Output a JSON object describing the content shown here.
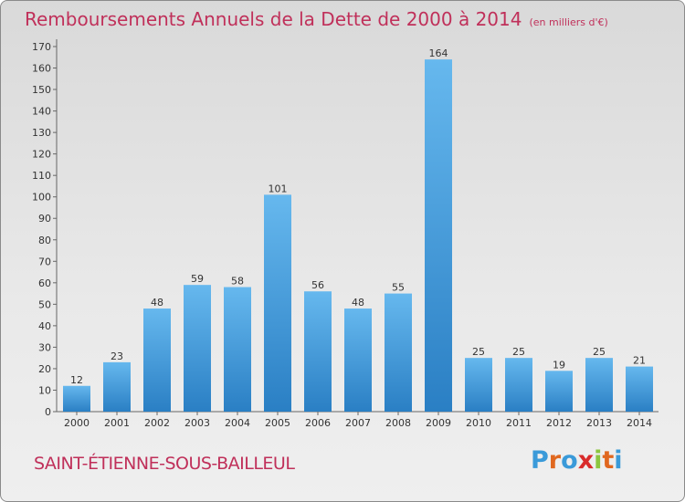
{
  "title": "Remboursements Annuels de la Dette de 2000 à 2014",
  "title_unit": "(en milliers d'€)",
  "commune": "SAINT-ÉTIENNE-SOUS-BAILLEUL",
  "logo": {
    "text": "Proxiti",
    "letters": [
      "P",
      "r",
      "o",
      "x",
      "i",
      "t",
      "i"
    ],
    "colors": [
      "#3a9ad9",
      "#e0681f",
      "#3a9ad9",
      "#d92b2b",
      "#8cc63f",
      "#e0681f",
      "#3a9ad9"
    ]
  },
  "colors": {
    "title": "#c0305a",
    "bar_top": "#66b8ee",
    "bar_bottom": "#2a7fc4"
  },
  "chart_data": {
    "type": "bar",
    "categories": [
      "2000",
      "2001",
      "2002",
      "2003",
      "2004",
      "2005",
      "2006",
      "2007",
      "2008",
      "2009",
      "2010",
      "2011",
      "2012",
      "2013",
      "2014"
    ],
    "values": [
      12,
      23,
      48,
      59,
      58,
      101,
      56,
      48,
      55,
      164,
      25,
      25,
      19,
      25,
      21
    ],
    "ylim": [
      0,
      170
    ],
    "yticks": [
      0,
      10,
      20,
      30,
      40,
      50,
      60,
      70,
      80,
      90,
      100,
      110,
      120,
      130,
      140,
      150,
      160,
      170
    ],
    "grid": false
  }
}
